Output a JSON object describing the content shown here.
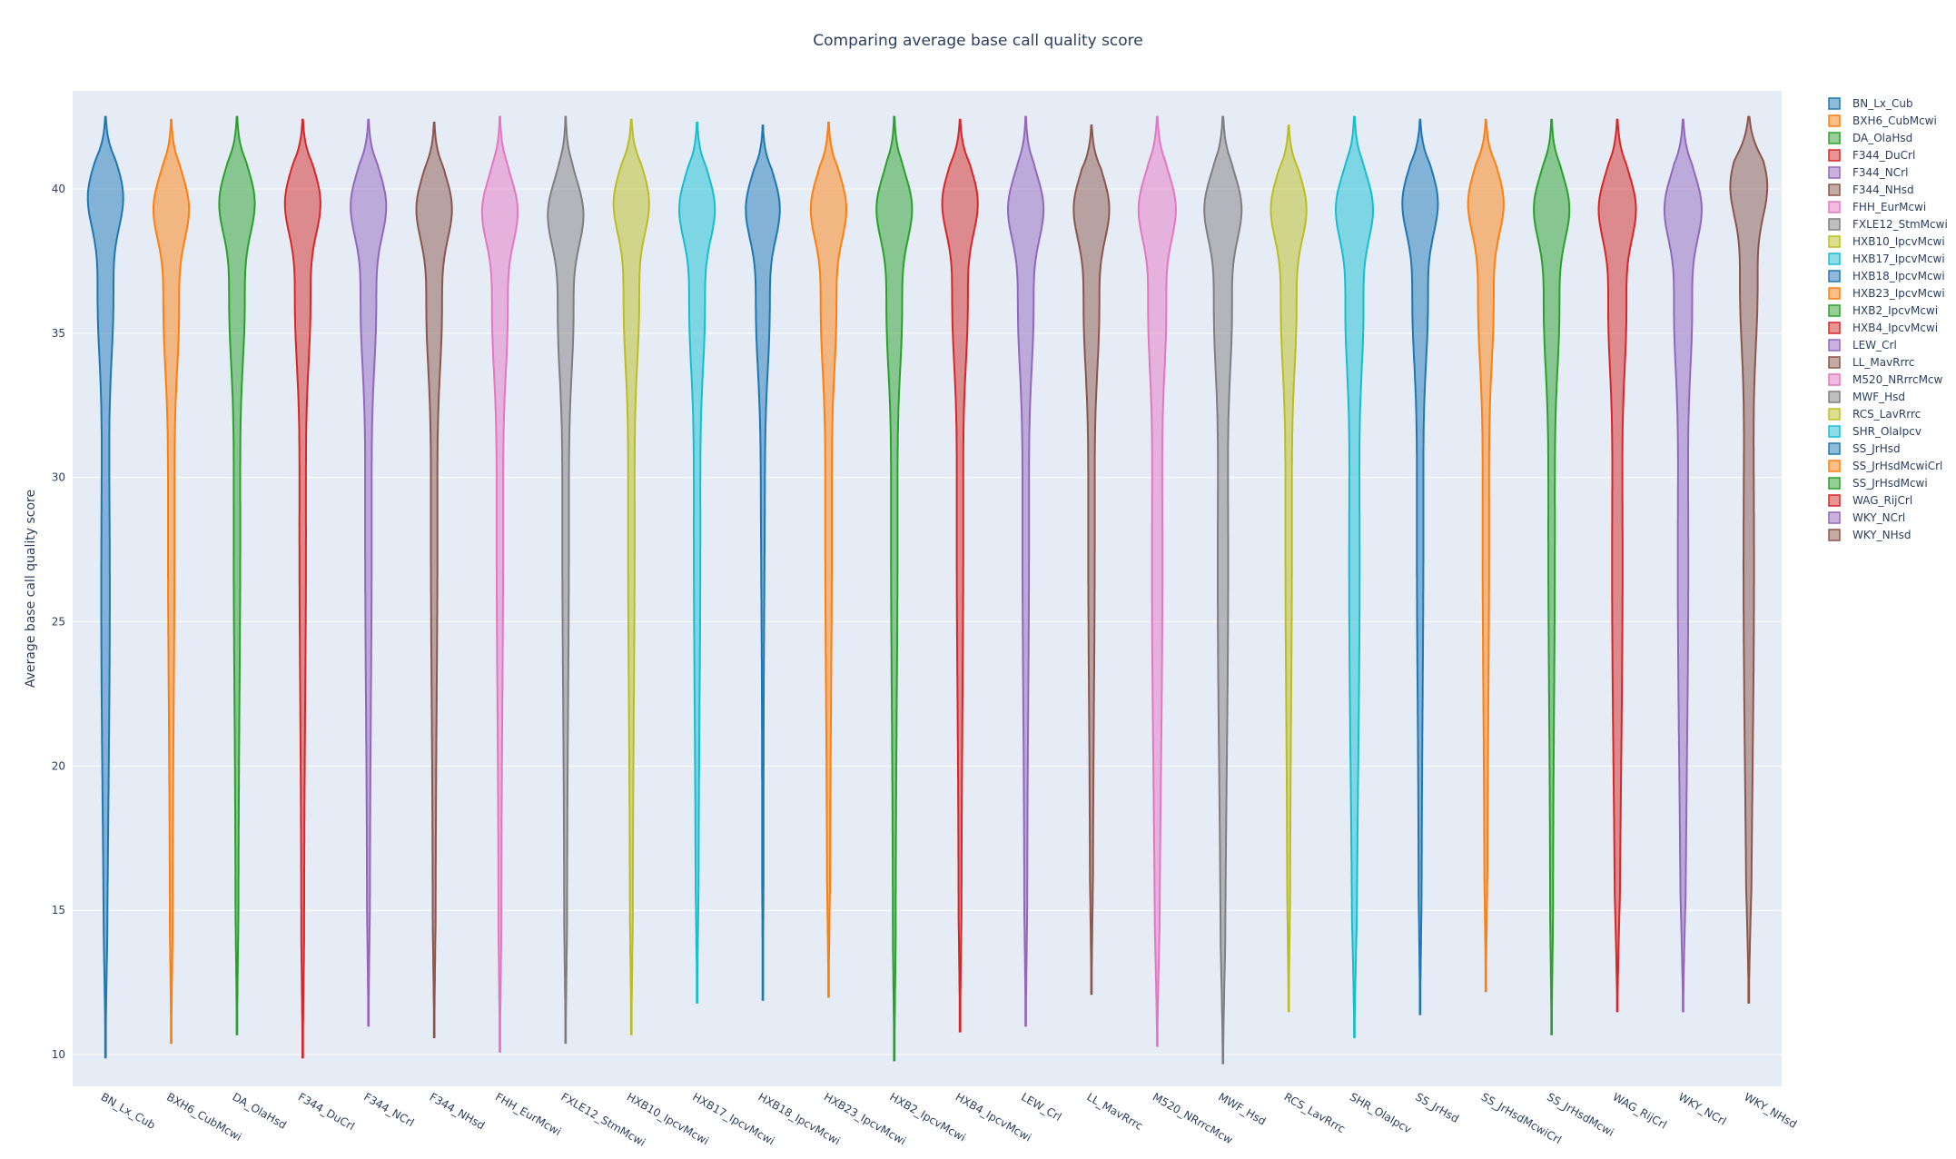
{
  "chart_data": {
    "type": "violin",
    "title": "Comparing average base call quality score",
    "xlabel": "",
    "ylabel": "Average base call quality score",
    "ylim": [
      8.9,
      43.4
    ],
    "yticks": [
      10,
      15,
      20,
      25,
      30,
      35,
      40
    ],
    "grid": true,
    "legend_position": "right",
    "categories": [
      "BN_Lx_Cub",
      "BXH6_CubMcwi",
      "DA_OlaHsd",
      "F344_DuCrl",
      "F344_NCrl",
      "F344_NHsd",
      "FHH_EurMcwi",
      "FXLE12_StmMcwi",
      "HXB10_IpcvMcwi",
      "HXB17_IpcvMcwi",
      "HXB18_IpcvMcwi",
      "HXB23_IpcvMcwi",
      "HXB2_IpcvMcwi",
      "HXB4_IpcvMcwi",
      "LEW_Crl",
      "LL_MavRrrc",
      "M520_NRrrcMcw",
      "MWF_Hsd",
      "RCS_LavRrrc",
      "SHR_OlaIpcv",
      "SS_JrHsd",
      "SS_JrHsdMcwiCrl",
      "SS_JrHsdMcwi",
      "WAG_RijCrl",
      "WKY_NCrl",
      "WKY_NHsd"
    ],
    "series": [
      {
        "name": "BN_Lx_Cub",
        "color": "#1f77b4",
        "min": 9.9,
        "max": 42.5,
        "mode": 39.8,
        "shape": "long"
      },
      {
        "name": "BXH6_CubMcwi",
        "color": "#ff7f0e",
        "min": 10.4,
        "max": 42.4,
        "mode": 39.4,
        "shape": "standard"
      },
      {
        "name": "DA_OlaHsd",
        "color": "#2ca02c",
        "min": 10.7,
        "max": 42.5,
        "mode": 39.6,
        "shape": "standard"
      },
      {
        "name": "F344_DuCrl",
        "color": "#d62728",
        "min": 9.9,
        "max": 42.4,
        "mode": 39.6,
        "shape": "standard"
      },
      {
        "name": "F344_NCrl",
        "color": "#9467bd",
        "min": 11.0,
        "max": 42.4,
        "mode": 39.5,
        "shape": "standard"
      },
      {
        "name": "F344_NHsd",
        "color": "#8c564b",
        "min": 10.6,
        "max": 42.3,
        "mode": 39.4,
        "shape": "standard"
      },
      {
        "name": "FHH_EurMcwi",
        "color": "#e377c2",
        "min": 10.1,
        "max": 42.5,
        "mode": 39.3,
        "shape": "standard"
      },
      {
        "name": "FXLE12_StmMcwi",
        "color": "#7f7f7f",
        "min": 10.4,
        "max": 42.5,
        "mode": 39.2,
        "shape": "standard"
      },
      {
        "name": "HXB10_IpcvMcwi",
        "color": "#bcbd22",
        "min": 10.7,
        "max": 42.4,
        "mode": 39.6,
        "shape": "standard"
      },
      {
        "name": "HXB17_IpcvMcwi",
        "color": "#17becf",
        "min": 11.8,
        "max": 42.3,
        "mode": 39.4,
        "shape": "standard"
      },
      {
        "name": "HXB18_IpcvMcwi",
        "color": "#1f77b4",
        "min": 11.9,
        "max": 42.2,
        "mode": 39.4,
        "shape": "short"
      },
      {
        "name": "HXB23_IpcvMcwi",
        "color": "#ff7f0e",
        "min": 12.0,
        "max": 42.3,
        "mode": 39.4,
        "shape": "standard"
      },
      {
        "name": "HXB2_IpcvMcwi",
        "color": "#2ca02c",
        "min": 9.8,
        "max": 42.5,
        "mode": 39.4,
        "shape": "standard"
      },
      {
        "name": "HXB4_IpcvMcwi",
        "color": "#d62728",
        "min": 10.8,
        "max": 42.4,
        "mode": 39.6,
        "shape": "standard"
      },
      {
        "name": "LEW_Crl",
        "color": "#9467bd",
        "min": 11.0,
        "max": 42.5,
        "mode": 39.4,
        "shape": "standard"
      },
      {
        "name": "LL_MavRrrc",
        "color": "#8c564b",
        "min": 12.1,
        "max": 42.2,
        "mode": 39.4,
        "shape": "standard"
      },
      {
        "name": "M520_NRrrcMcw",
        "color": "#e377c2",
        "min": 10.3,
        "max": 42.5,
        "mode": 39.4,
        "shape": "wide"
      },
      {
        "name": "MWF_Hsd",
        "color": "#7f7f7f",
        "min": 9.7,
        "max": 42.5,
        "mode": 39.4,
        "shape": "wide"
      },
      {
        "name": "RCS_LavRrrc",
        "color": "#bcbd22",
        "min": 11.5,
        "max": 42.2,
        "mode": 39.4,
        "shape": "standard"
      },
      {
        "name": "SHR_OlaIpcv",
        "color": "#17becf",
        "min": 10.6,
        "max": 42.5,
        "mode": 39.4,
        "shape": "wide"
      },
      {
        "name": "SS_JrHsd",
        "color": "#1f77b4",
        "min": 11.4,
        "max": 42.4,
        "mode": 39.6,
        "shape": "standard"
      },
      {
        "name": "SS_JrHsdMcwiCrl",
        "color": "#ff7f0e",
        "min": 12.2,
        "max": 42.4,
        "mode": 39.6,
        "shape": "standard"
      },
      {
        "name": "SS_JrHsdMcwi",
        "color": "#2ca02c",
        "min": 10.7,
        "max": 42.4,
        "mode": 39.4,
        "shape": "standard"
      },
      {
        "name": "WAG_RijCrl",
        "color": "#d62728",
        "min": 11.5,
        "max": 42.4,
        "mode": 39.4,
        "shape": "wide"
      },
      {
        "name": "WKY_NCrl",
        "color": "#9467bd",
        "min": 11.5,
        "max": 42.4,
        "mode": 39.4,
        "shape": "wide"
      },
      {
        "name": "WKY_NHsd",
        "color": "#8c564b",
        "min": 11.8,
        "max": 42.5,
        "mode": 40.2,
        "shape": "wide"
      }
    ]
  }
}
